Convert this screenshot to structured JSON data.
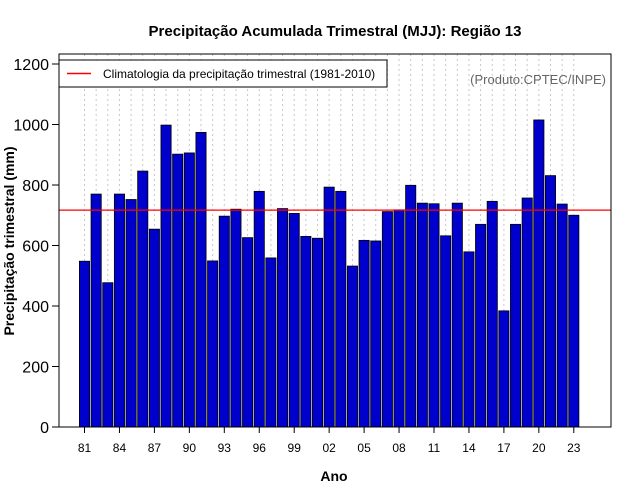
{
  "chart_data": {
    "type": "bar",
    "title": "Precipitação Acumulada Trimestral (MJJ): Região 13",
    "xlabel": "Ano",
    "ylabel": "Precipitação trimestral (mm)",
    "credit": "(Produto:CPTEC/INPE)",
    "ylim": [
      0,
      1200
    ],
    "yticks": [
      0,
      200,
      400,
      600,
      800,
      1000,
      1200
    ],
    "years": [
      1981,
      1982,
      1983,
      1984,
      1985,
      1986,
      1987,
      1988,
      1989,
      1990,
      1991,
      1992,
      1993,
      1994,
      1995,
      1996,
      1997,
      1998,
      1999,
      2000,
      2001,
      2002,
      2003,
      2004,
      2005,
      2006,
      2007,
      2008,
      2009,
      2010,
      2011,
      2012,
      2013,
      2014,
      2015,
      2016,
      2017,
      2018,
      2019,
      2020,
      2021,
      2022,
      2023
    ],
    "values": [
      548,
      770,
      477,
      770,
      752,
      846,
      654,
      998,
      902,
      906,
      974,
      549,
      697,
      720,
      626,
      779,
      559,
      722,
      706,
      630,
      624,
      793,
      779,
      532,
      617,
      615,
      712,
      718,
      799,
      740,
      738,
      632,
      740,
      579,
      670,
      746,
      384,
      670,
      757,
      1015,
      831,
      737,
      700
    ],
    "xtick_labels": [
      "81",
      "84",
      "87",
      "90",
      "93",
      "96",
      "99",
      "02",
      "05",
      "08",
      "11",
      "14",
      "17",
      "20",
      "23"
    ],
    "xtick_years": [
      1981,
      1984,
      1987,
      1990,
      1993,
      1996,
      1999,
      2002,
      2005,
      2008,
      2011,
      2014,
      2017,
      2020,
      2023
    ],
    "climatology": {
      "label": "Climatologia da precipitação trimestral (1981-2010)",
      "value": 717
    },
    "legend_position": "top-left",
    "grid": "vertical dotted",
    "colors": {
      "bar_fill": "#0000cd",
      "bar_stroke": "#000000",
      "climatology_line": "#ff0000",
      "grid": "#c8c8c8",
      "credit": "#666666"
    }
  }
}
